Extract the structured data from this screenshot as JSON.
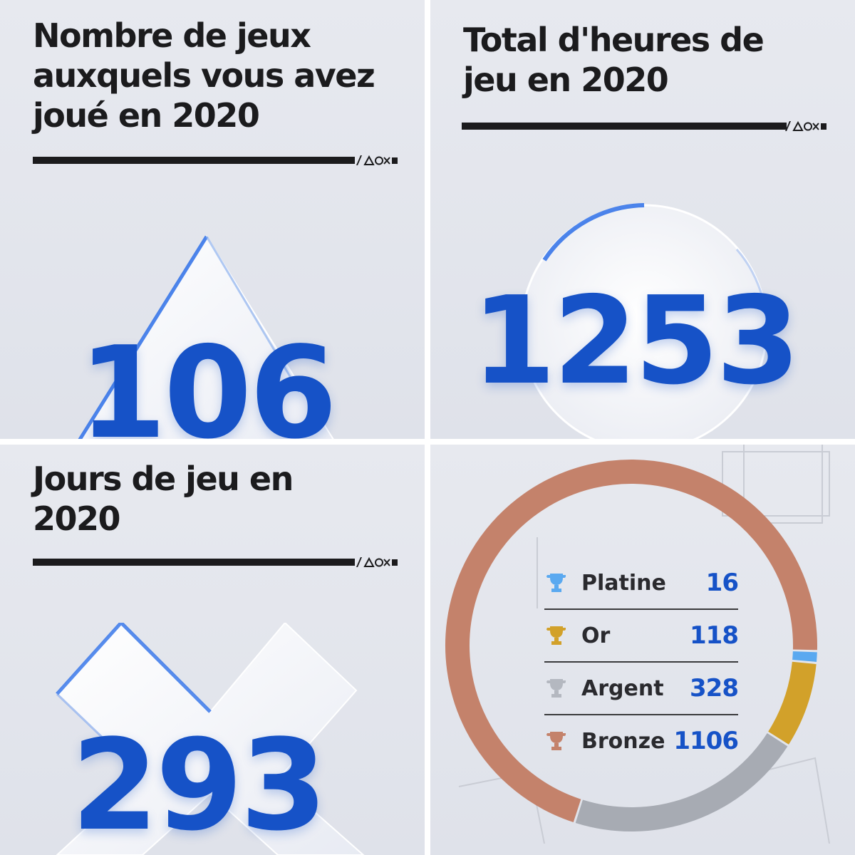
{
  "panels": {
    "games": {
      "title_lines": [
        "Nombre de jeux",
        "auxquels vous avez",
        "joué en 2020"
      ],
      "value": "106",
      "shape_icon": "triangle-icon"
    },
    "hours": {
      "title_lines": [
        "Total d'heures de",
        "jeu en 2020"
      ],
      "value": "1253",
      "shape_icon": "circle-icon"
    },
    "days": {
      "title_lines": [
        "Jours de jeu en",
        "2020"
      ],
      "value": "293",
      "shape_icon": "cross-icon"
    },
    "trophies": {
      "items": [
        {
          "label": "Platine",
          "value": "16",
          "color": "#5aa9f0"
        },
        {
          "label": "Or",
          "value": "118",
          "color": "#d2a12a"
        },
        {
          "label": "Argent",
          "value": "328",
          "color": "#a7abb3"
        },
        {
          "label": "Bronze",
          "value": "1106",
          "color": "#c4826b"
        }
      ],
      "chart_data": {
        "type": "pie",
        "categories": [
          "Platine",
          "Or",
          "Argent",
          "Bronze"
        ],
        "values": [
          16,
          118,
          328,
          1106
        ],
        "colors": [
          "#5aa9f0",
          "#d2a12a",
          "#a7abb3",
          "#c4826b"
        ]
      }
    }
  },
  "brand": {
    "accent": "#1652c7",
    "text": "#1b1b1d",
    "symbols_icon": "playstation-shapes-icon"
  }
}
